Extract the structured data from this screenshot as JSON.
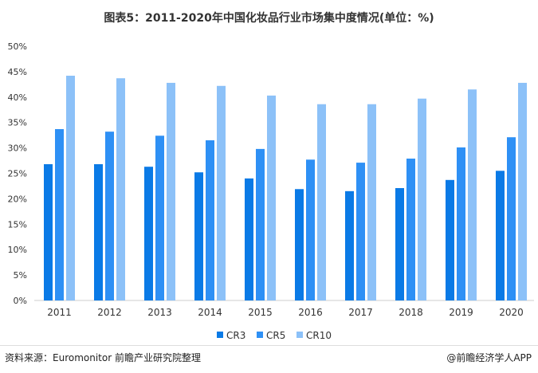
{
  "chart_data": {
    "type": "bar",
    "title": "图表5：2011-2020年中国化妆品行业市场集中度情况(单位：%)",
    "categories": [
      "2011",
      "2012",
      "2013",
      "2014",
      "2015",
      "2016",
      "2017",
      "2018",
      "2019",
      "2020"
    ],
    "series": [
      {
        "name": "CR3",
        "color": "#0a7ae6",
        "values": [
          26.8,
          26.8,
          26.3,
          25.2,
          24.0,
          21.9,
          21.5,
          22.1,
          23.7,
          25.5
        ]
      },
      {
        "name": "CR5",
        "color": "#2e90f5",
        "values": [
          33.7,
          33.2,
          32.4,
          31.5,
          29.8,
          27.7,
          27.1,
          27.9,
          30.1,
          32.1
        ]
      },
      {
        "name": "CR10",
        "color": "#8cc1f8",
        "values": [
          44.2,
          43.7,
          42.8,
          42.2,
          40.3,
          38.6,
          38.6,
          39.7,
          41.5,
          42.8
        ]
      }
    ],
    "ylim": [
      0,
      50
    ],
    "yticks": [
      "0%",
      "5%",
      "10%",
      "15%",
      "20%",
      "25%",
      "30%",
      "35%",
      "40%",
      "45%",
      "50%"
    ],
    "grid": false,
    "legend": "bottom"
  },
  "footer": {
    "source": "资料来源：Euromonitor 前瞻产业研究院整理",
    "brand": "@前瞻经济学人APP"
  },
  "watermark": "前瞻产业研究院"
}
